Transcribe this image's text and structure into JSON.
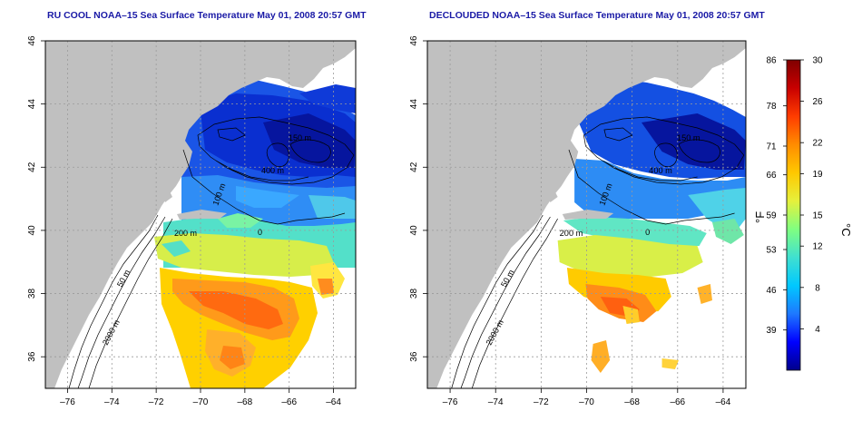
{
  "panels": [
    {
      "title": "RU COOL NOAA–15 Sea Surface Temperature May 01, 2008 20:57 GMT",
      "y_ticks": [
        "46",
        "44",
        "42",
        "40",
        "38",
        "36"
      ],
      "x_ticks": [
        "–76",
        "–74",
        "–72",
        "–70",
        "–68",
        "–66",
        "–64"
      ],
      "isobaths": [
        "200 m",
        "50 m",
        "2000 m",
        "400 m",
        "100 m",
        "150 m",
        "0"
      ]
    },
    {
      "title": "DECLOUDED NOAA–15 Sea Surface Temperature May 01, 2008 20:57 GMT",
      "y_ticks": [
        "46",
        "44",
        "42",
        "40",
        "38",
        "36"
      ],
      "x_ticks": [
        "–76",
        "–74",
        "–72",
        "–70",
        "–68",
        "–66",
        "–64"
      ],
      "isobaths": [
        "200 m",
        "50 m",
        "2000 m",
        "400 m",
        "100 m",
        "150 m",
        "0"
      ]
    }
  ],
  "colorbar": {
    "f_ticks": [
      "86",
      "78",
      "71",
      "66",
      "59",
      "53",
      "46",
      "39"
    ],
    "c_ticks": [
      "30",
      "26",
      "22",
      "19",
      "15",
      "12",
      "8",
      "4"
    ],
    "f_label": "°F",
    "c_label": "°C",
    "f_values": [
      86,
      78,
      71,
      66,
      59,
      53,
      46,
      39
    ],
    "c_values": [
      30,
      26,
      22,
      19,
      15,
      12,
      8,
      4
    ],
    "c_range": [
      0,
      30
    ],
    "colors": [
      "#00008b",
      "#0000ff",
      "#1e78ff",
      "#00c8ff",
      "#40e0d0",
      "#80ff80",
      "#e6f03c",
      "#ffc800",
      "#ff8c00",
      "#ff3c00",
      "#c80000",
      "#800000"
    ]
  },
  "map": {
    "lon_range": [
      -77,
      -63
    ],
    "lat_range": [
      35,
      46
    ],
    "land_color": "#c0c0c0",
    "water_color": "#ffffff"
  }
}
